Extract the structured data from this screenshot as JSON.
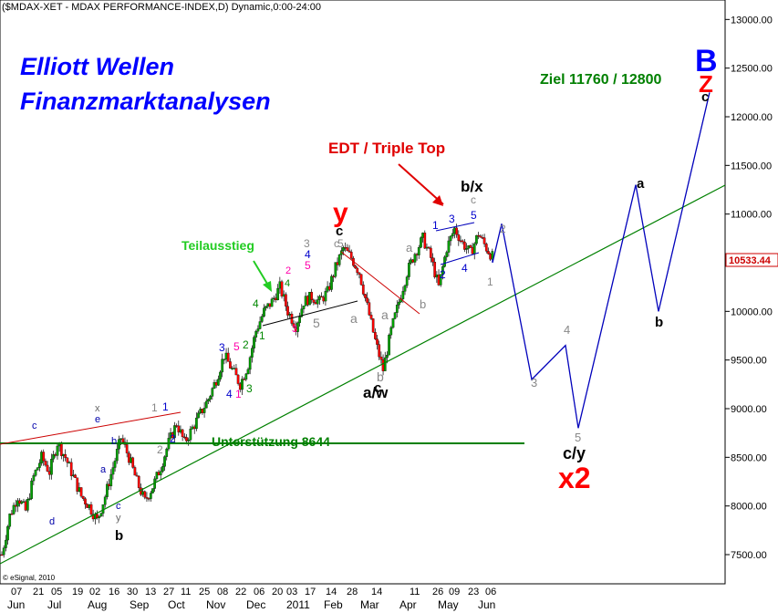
{
  "header": "($MDAX-XET - MDAX PERFORMANCE-INDEX,D) Dynamic,0:00-24:00",
  "title_line1": "Elliott Wellen",
  "title_line2": "Finanzmarktanalysen",
  "copyright": "© eSignal, 2010",
  "last_price": "10533.44",
  "colors": {
    "title": "#0000ff",
    "green": "#008000",
    "red": "#ff0000",
    "forecast": "#0000bb",
    "candle_up": "#00a000",
    "candle_down": "#ff0000"
  },
  "chart_data": {
    "type": "candlestick",
    "y_axis": {
      "min": 7200,
      "max": 13200,
      "side": "right",
      "ticks": [
        7500,
        8000,
        8500,
        9000,
        9500,
        10000,
        10500,
        11000,
        11500,
        12000,
        12500,
        13000
      ],
      "tick_labels": [
        "7500.00",
        "8000.00",
        "8500.00",
        "9000.00",
        "9500.00",
        "10000.00",
        "10500.00",
        "11000.00",
        "11500.00",
        "12000.00",
        "12500.00",
        "13000.00"
      ]
    },
    "x_axis": {
      "day_labels": [
        "07",
        "21",
        "05",
        "19",
        "02",
        "16",
        "30",
        "13",
        "27",
        "11",
        "25",
        "08",
        "22",
        "06",
        "20",
        "03",
        "17",
        "14",
        "28",
        "14",
        "11",
        "26",
        "09",
        "23",
        "06"
      ],
      "month_labels": [
        "Jun",
        "Jul",
        "Aug",
        "Sep",
        "Oct",
        "Nov",
        "Dec",
        "2011",
        "Feb",
        "Mar",
        "Apr",
        "May",
        "Jun"
      ]
    },
    "price_path": [
      [
        0,
        7500
      ],
      [
        4,
        7900
      ],
      [
        8,
        8100
      ],
      [
        12,
        7950
      ],
      [
        16,
        8300
      ],
      [
        20,
        8500
      ],
      [
        24,
        8350
      ],
      [
        28,
        8650
      ],
      [
        32,
        8500
      ],
      [
        36,
        8300
      ],
      [
        40,
        8100
      ],
      [
        44,
        8000
      ],
      [
        48,
        7850
      ],
      [
        52,
        8100
      ],
      [
        56,
        8400
      ],
      [
        60,
        8700
      ],
      [
        64,
        8500
      ],
      [
        68,
        8250
      ],
      [
        72,
        8050
      ],
      [
        76,
        8200
      ],
      [
        80,
        8400
      ],
      [
        84,
        8650
      ],
      [
        88,
        8850
      ],
      [
        92,
        8650
      ],
      [
        96,
        8800
      ],
      [
        100,
        8950
      ],
      [
        104,
        9100
      ],
      [
        108,
        9300
      ],
      [
        112,
        9550
      ],
      [
        116,
        9400
      ],
      [
        120,
        9250
      ],
      [
        124,
        9450
      ],
      [
        128,
        9800
      ],
      [
        132,
        10000
      ],
      [
        136,
        10100
      ],
      [
        140,
        10250
      ],
      [
        144,
        10000
      ],
      [
        148,
        9850
      ],
      [
        152,
        10100
      ],
      [
        156,
        10150
      ],
      [
        160,
        10100
      ],
      [
        164,
        10200
      ],
      [
        168,
        10450
      ],
      [
        172,
        10650
      ],
      [
        176,
        10550
      ],
      [
        180,
        10400
      ],
      [
        184,
        10050
      ],
      [
        188,
        9700
      ],
      [
        192,
        9400
      ],
      [
        196,
        9800
      ],
      [
        200,
        10100
      ],
      [
        204,
        10400
      ],
      [
        208,
        10600
      ],
      [
        212,
        10750
      ],
      [
        216,
        10550
      ],
      [
        220,
        10250
      ],
      [
        224,
        10650
      ],
      [
        228,
        10850
      ],
      [
        232,
        10700
      ],
      [
        236,
        10600
      ],
      [
        240,
        10800
      ],
      [
        244,
        10650
      ],
      [
        248,
        10533
      ]
    ],
    "forecast_path": [
      [
        10533,
        "start"
      ],
      [
        10500,
        "1"
      ],
      [
        10900,
        "2"
      ],
      [
        9300,
        "3"
      ],
      [
        9650,
        "4"
      ],
      [
        8800,
        "5"
      ],
      [
        11300,
        "a"
      ],
      [
        10000,
        "b"
      ],
      [
        12250,
        "c"
      ]
    ],
    "annotations": {
      "support": "Unterstützung 8644",
      "support_value": 8644,
      "target": "Ziel 11760 / 12800",
      "edt": "EDT / Triple Top",
      "teil": "Teilausstieg",
      "big_b": "B",
      "big_z": "Z",
      "big_c": "c",
      "x2": "x2",
      "cy": "c/y",
      "aw": "a/w",
      "bx": "b/x",
      "y": "y",
      "waves": [
        "c",
        "x",
        "e",
        "d",
        "a",
        "b",
        "c",
        "y",
        "b",
        "1",
        "2",
        "1",
        "2",
        "3",
        "4",
        "5",
        "1",
        "2",
        "3",
        "4",
        "1",
        "2",
        "3",
        "4",
        "5",
        "3",
        "4",
        "5",
        "5",
        "c",
        "a",
        "b",
        "c",
        "a",
        "b",
        "1",
        "2",
        "3",
        "4",
        "5",
        "c",
        "1",
        "2",
        "a",
        "3",
        "4",
        "5",
        "c",
        "b",
        "a"
      ]
    }
  }
}
